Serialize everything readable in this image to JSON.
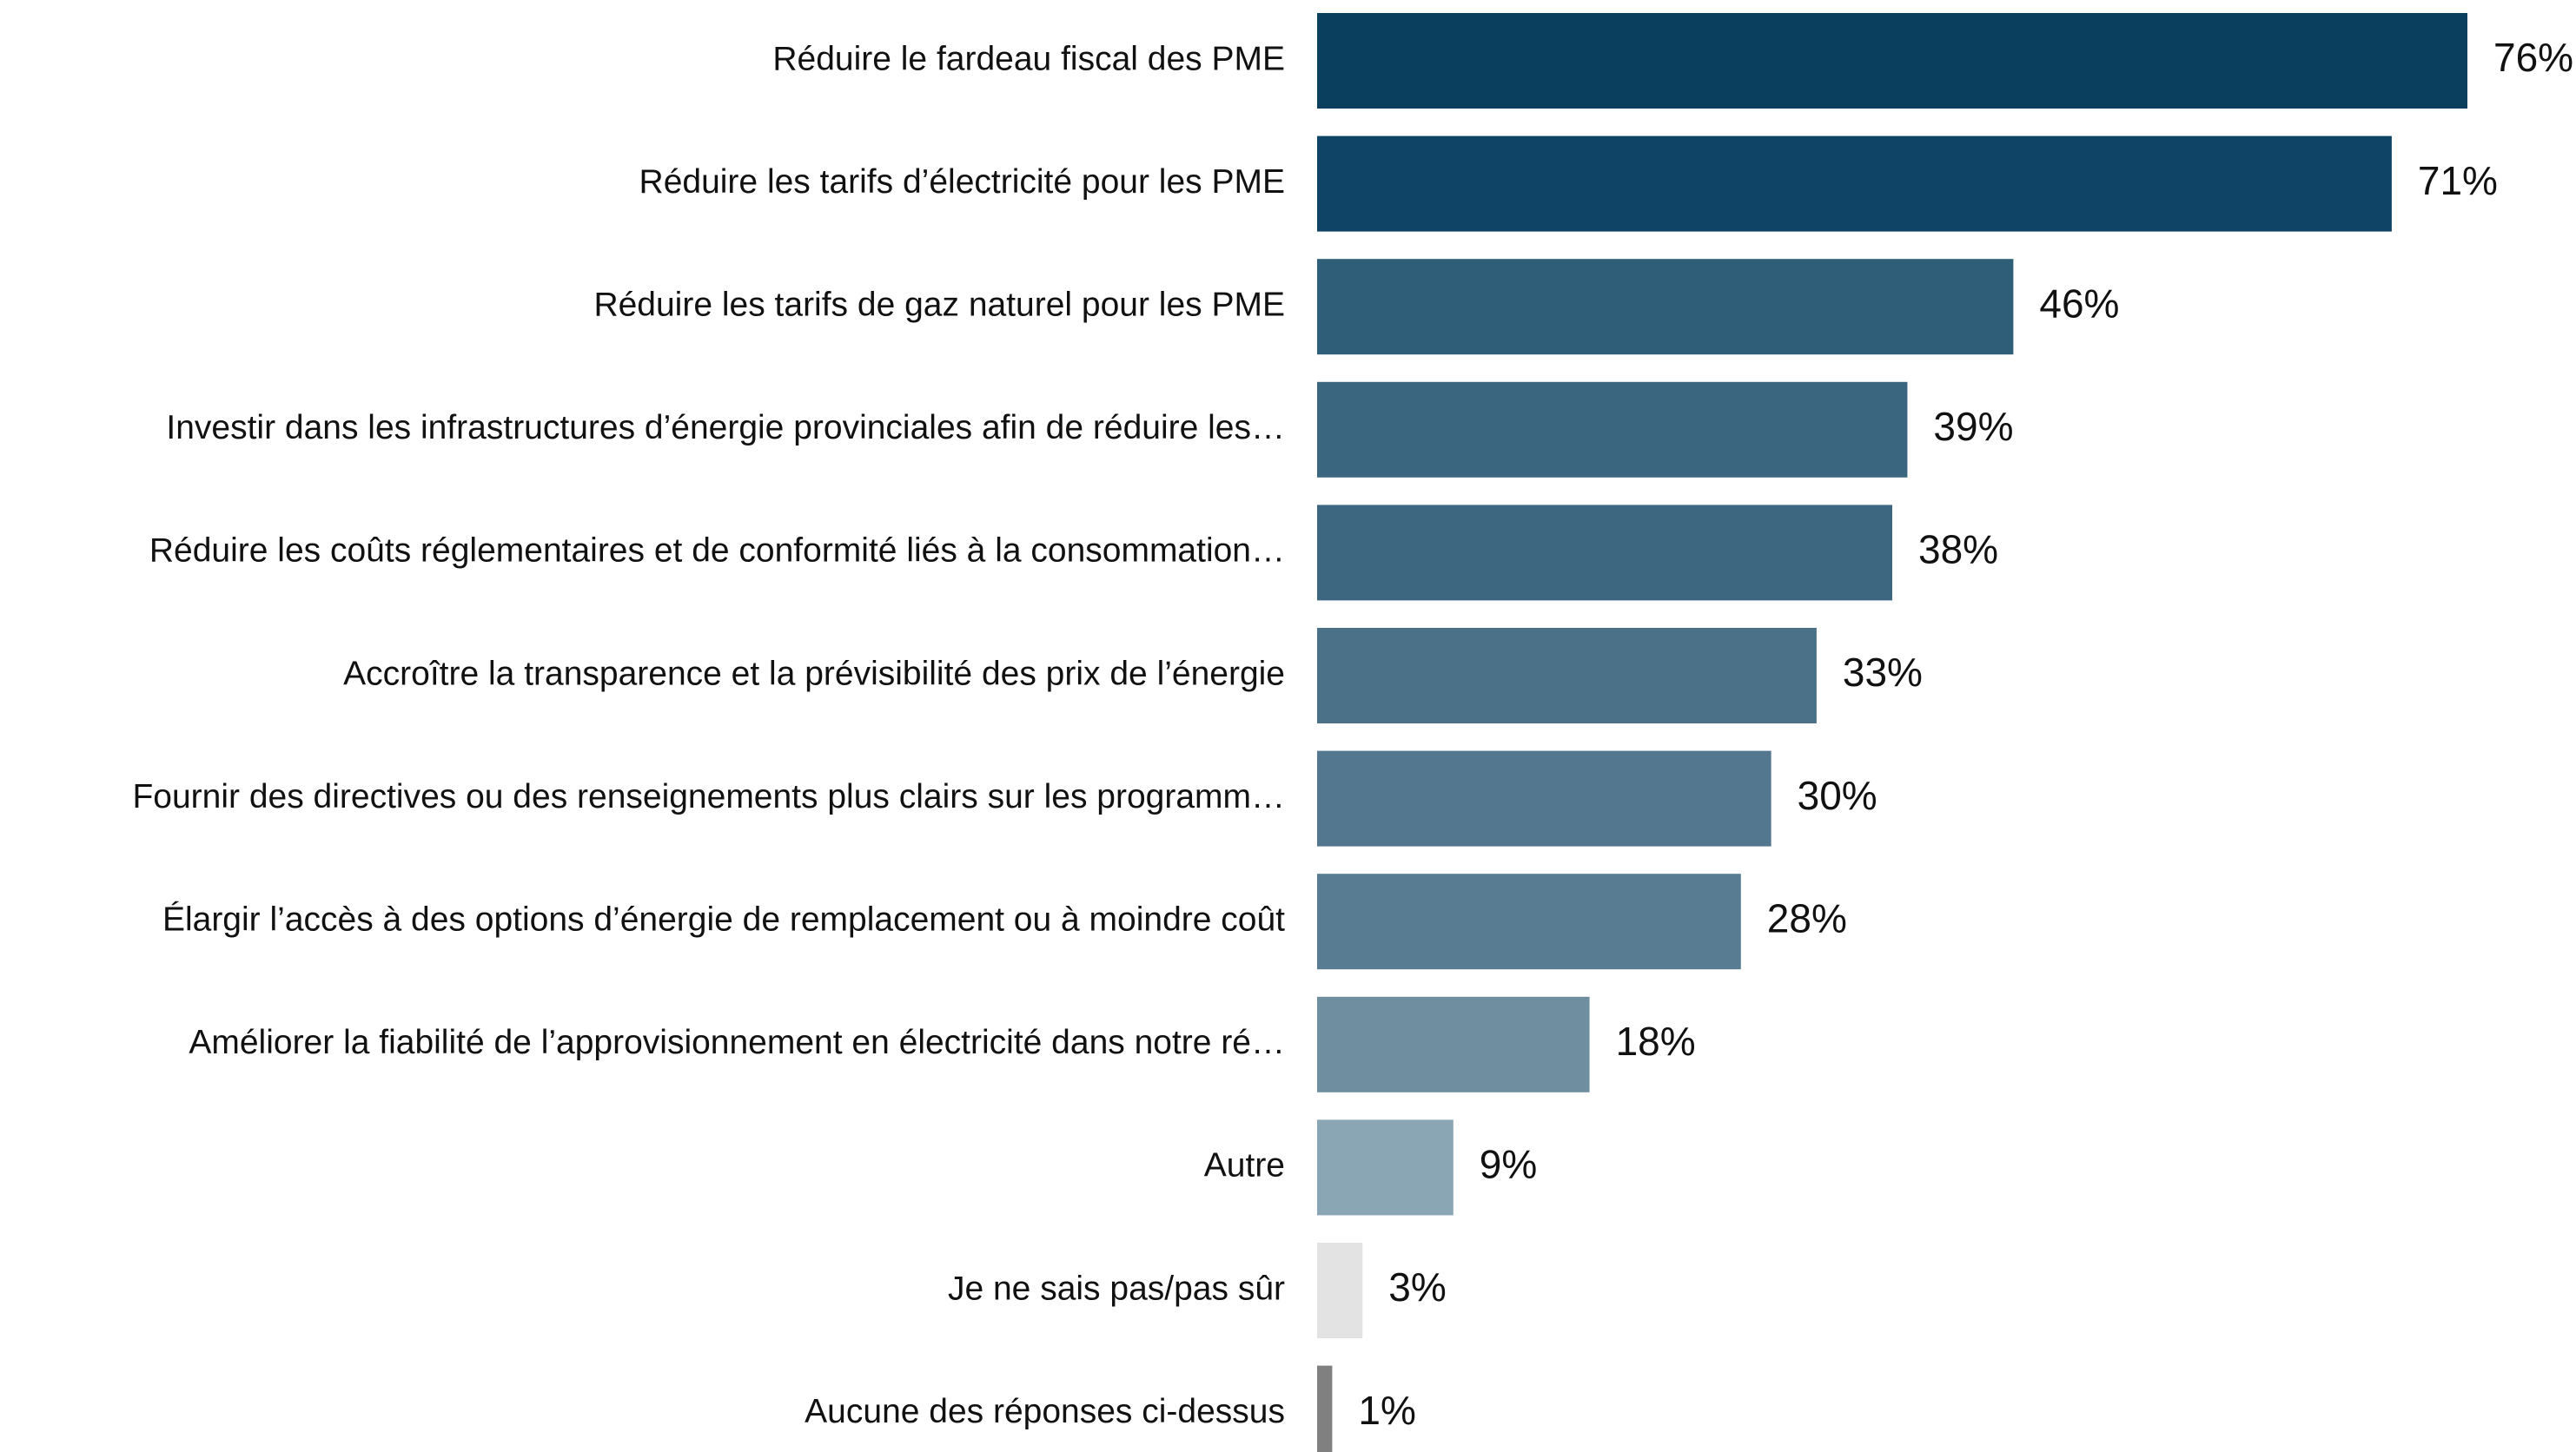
{
  "chart_data": {
    "type": "barh",
    "categories": [
      "Réduire le fardeau fiscal des PME",
      "Réduire les tarifs d’électricité pour les PME",
      "Réduire les tarifs de gaz naturel pour les PME",
      "Investir dans les infrastructures d’énergie provinciales afin de réduire les…",
      "Réduire les coûts réglementaires et de conformité liés à la consommation…",
      "Accroître la transparence et la prévisibilité des prix de l’énergie",
      "Fournir des directives ou des renseignements plus clairs sur les programm…",
      "Élargir l’accès à des options d’énergie de remplacement ou à moindre coût",
      "Améliorer la fiabilité de l’approvisionnement en électricité dans notre ré…",
      "Autre",
      "Je ne sais pas/pas sûr",
      "Aucune des réponses ci-dessus"
    ],
    "values": [
      76,
      71,
      46,
      39,
      38,
      33,
      30,
      28,
      18,
      9,
      3,
      1
    ],
    "value_labels": [
      "76%",
      "71%",
      "46%",
      "39%",
      "38%",
      "33%",
      "30%",
      "28%",
      "18%",
      "9%",
      "3%",
      "1%"
    ],
    "colors": [
      "#0b3f5e",
      "#0f4466",
      "#2f5e78",
      "#3a6680",
      "#3d6781",
      "#4b7189",
      "#52778e",
      "#587c91",
      "#6f8fa1",
      "#8aa5b4",
      "#e3e3e3",
      "#808080"
    ]
  }
}
